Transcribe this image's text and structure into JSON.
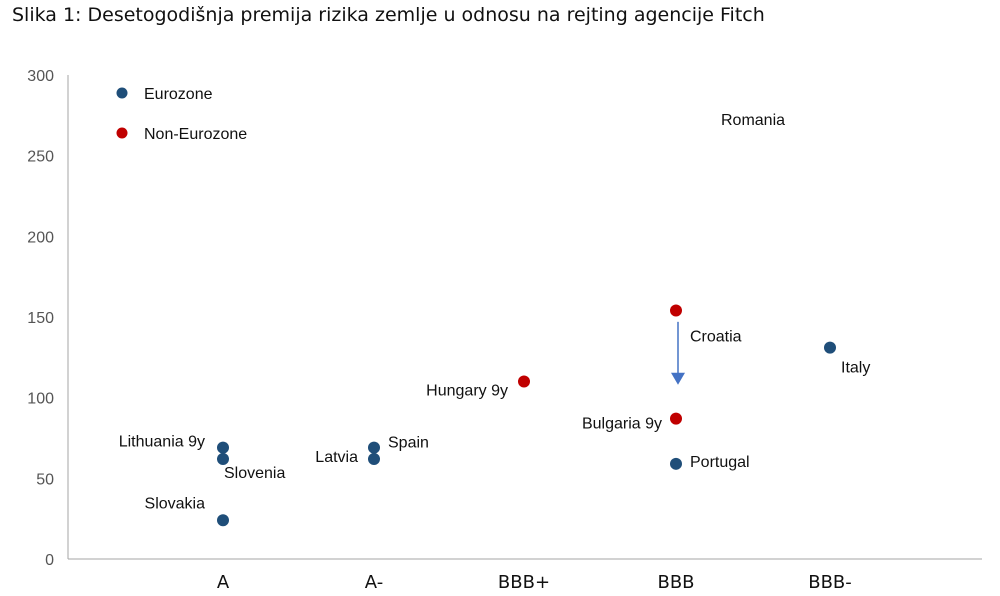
{
  "figure": {
    "title": "Slika 1: Desetogodišnja premija rizika zemlje u odnosu na rejting agencije Fitch"
  },
  "colors": {
    "eurozone": "#1f4e79",
    "non_eurozone": "#c00000",
    "arrow": "#4472c4",
    "axis": "#a6a6a6"
  },
  "chart_data": {
    "type": "scatter",
    "title": "",
    "xlabel": "",
    "ylabel": "",
    "categories": [
      "A",
      "A-",
      "BBB+",
      "BBB",
      "BBB-"
    ],
    "ylim": [
      0,
      300
    ],
    "yticks": [
      0,
      50,
      100,
      150,
      200,
      250,
      300
    ],
    "grid": false,
    "legend": {
      "position": "top-left",
      "entries": [
        {
          "name": "Eurozone",
          "color_key": "eurozone"
        },
        {
          "name": "Non-Eurozone",
          "color_key": "non_eurozone"
        }
      ]
    },
    "series": [
      {
        "name": "Eurozone",
        "points": [
          {
            "label": "Lithuania 9y",
            "x": "A",
            "y": 69
          },
          {
            "label": "Slovenia",
            "x": "A",
            "y": 62
          },
          {
            "label": "Slovakia",
            "x": "A",
            "y": 24
          },
          {
            "label": "Spain",
            "x": "A-",
            "y": 69
          },
          {
            "label": "Latvia",
            "x": "A-",
            "y": 62
          },
          {
            "label": "Portugal",
            "x": "BBB",
            "y": 59
          },
          {
            "label": "Italy",
            "x": "BBB-",
            "y": 131
          }
        ]
      },
      {
        "name": "Non-Eurozone",
        "points": [
          {
            "label": "Hungary 9y",
            "x": "BBB+",
            "y": 110
          },
          {
            "label": "Croatia",
            "x": "BBB",
            "y": 154
          },
          {
            "label": "Bulgaria 9y",
            "x": "BBB",
            "y": 87
          }
        ]
      }
    ],
    "annotations": [
      {
        "text": "Romania",
        "note": "label only, no marker",
        "x_between": [
          "BBB",
          "BBB-"
        ],
        "y": 272
      }
    ],
    "arrow": {
      "x": "BBB",
      "from_y": 147,
      "to_y": 108
    }
  }
}
